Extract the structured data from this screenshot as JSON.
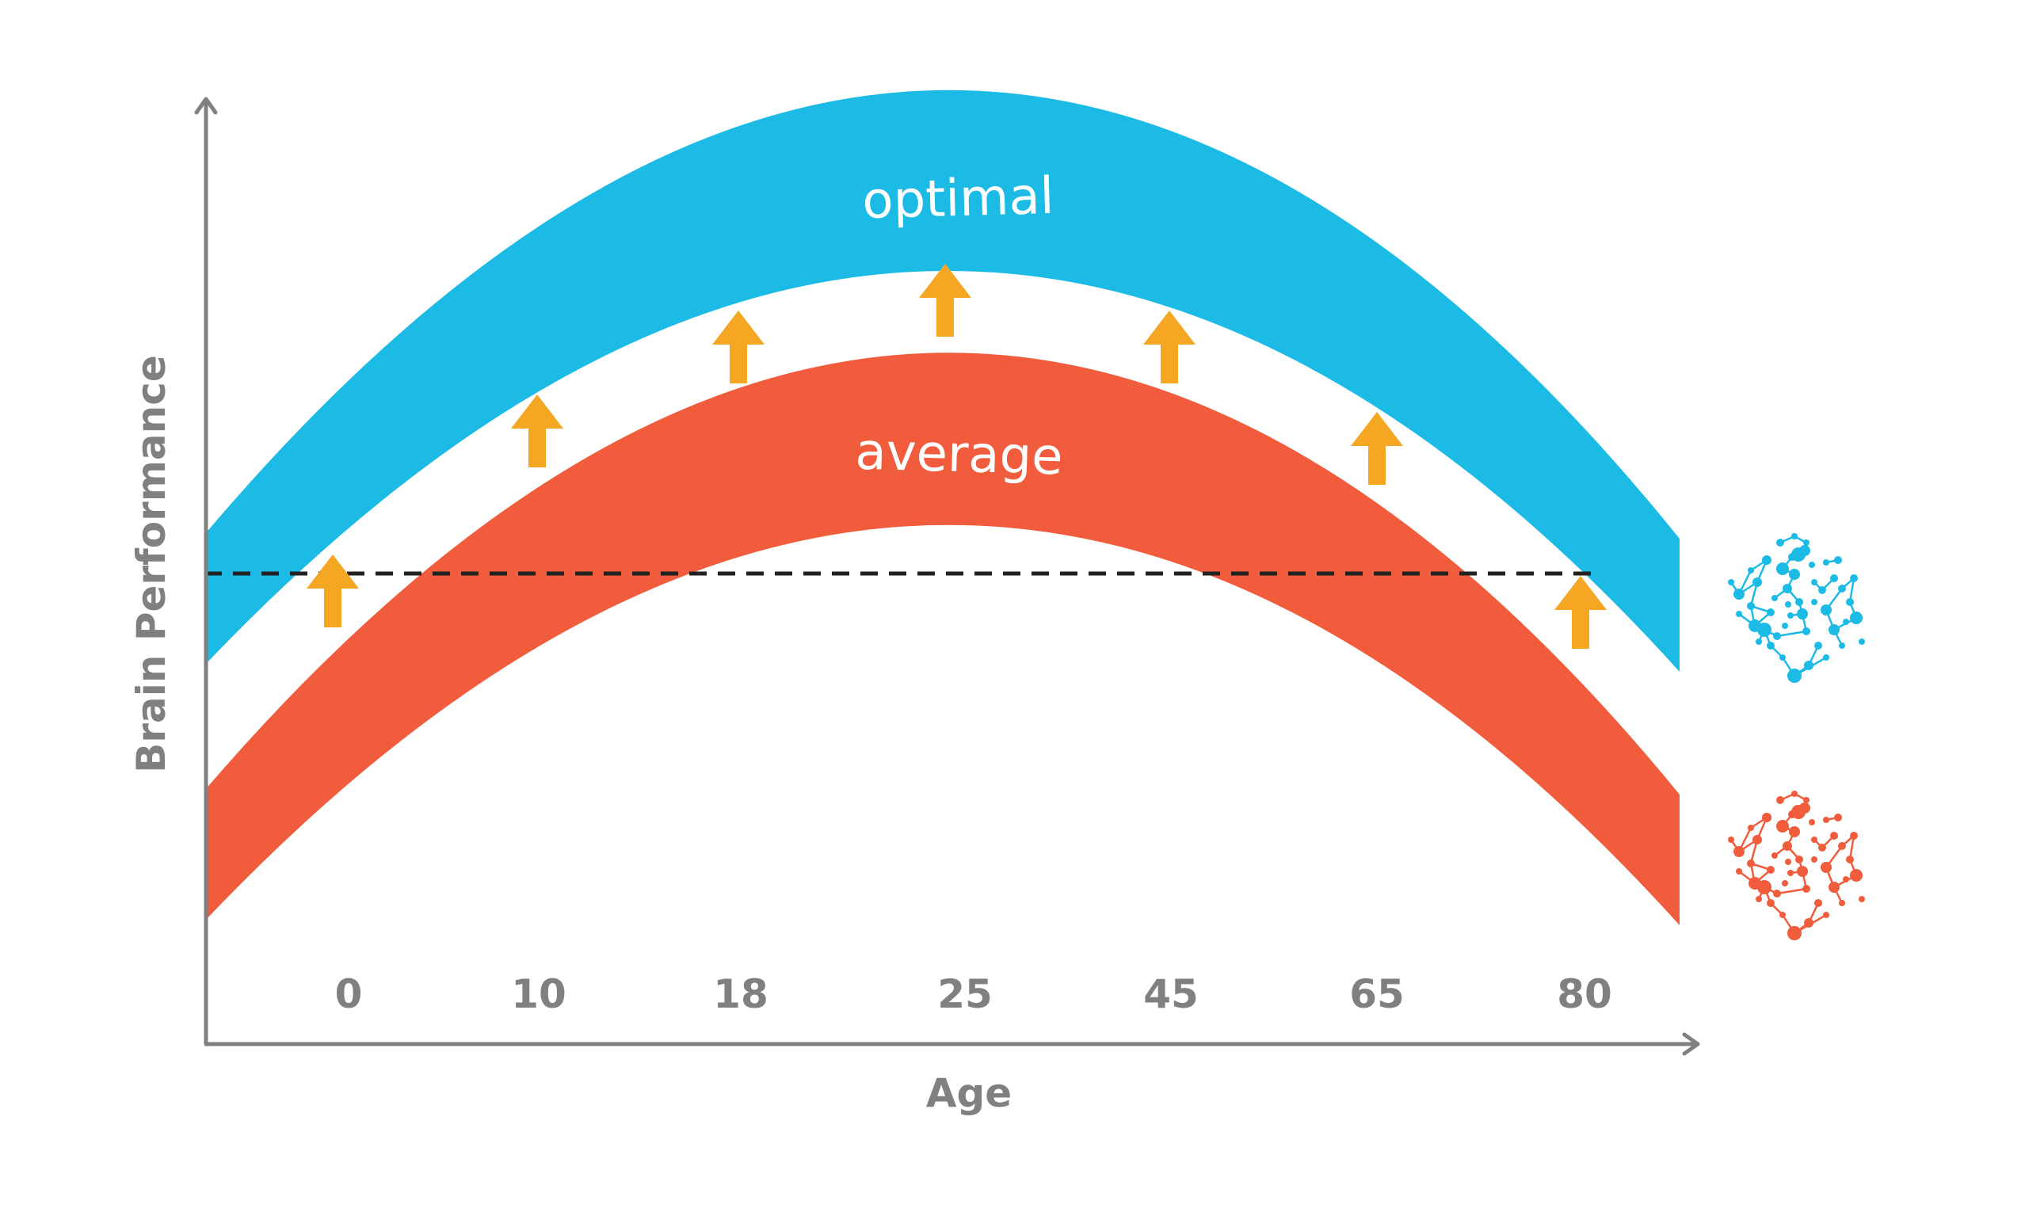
{
  "chart_data": {
    "type": "area",
    "title": "",
    "xlabel": "Age",
    "ylabel": "Brain Performance",
    "categories": [
      "0",
      "10",
      "18",
      "25",
      "45",
      "65",
      "80"
    ],
    "series": [
      {
        "name": "optimal",
        "color": "#1cbbe6"
      },
      {
        "name": "average",
        "color": "#f05c3c"
      }
    ],
    "reference_line": {
      "style": "dashed",
      "color": "#222222"
    },
    "improvement_arrows": {
      "count": 7,
      "color": "#f5a623",
      "direction": "up"
    },
    "axis_color": "#808080",
    "grid": false,
    "legend": "none",
    "icons": [
      "brain-network-icon-blue",
      "brain-network-icon-orange"
    ]
  }
}
